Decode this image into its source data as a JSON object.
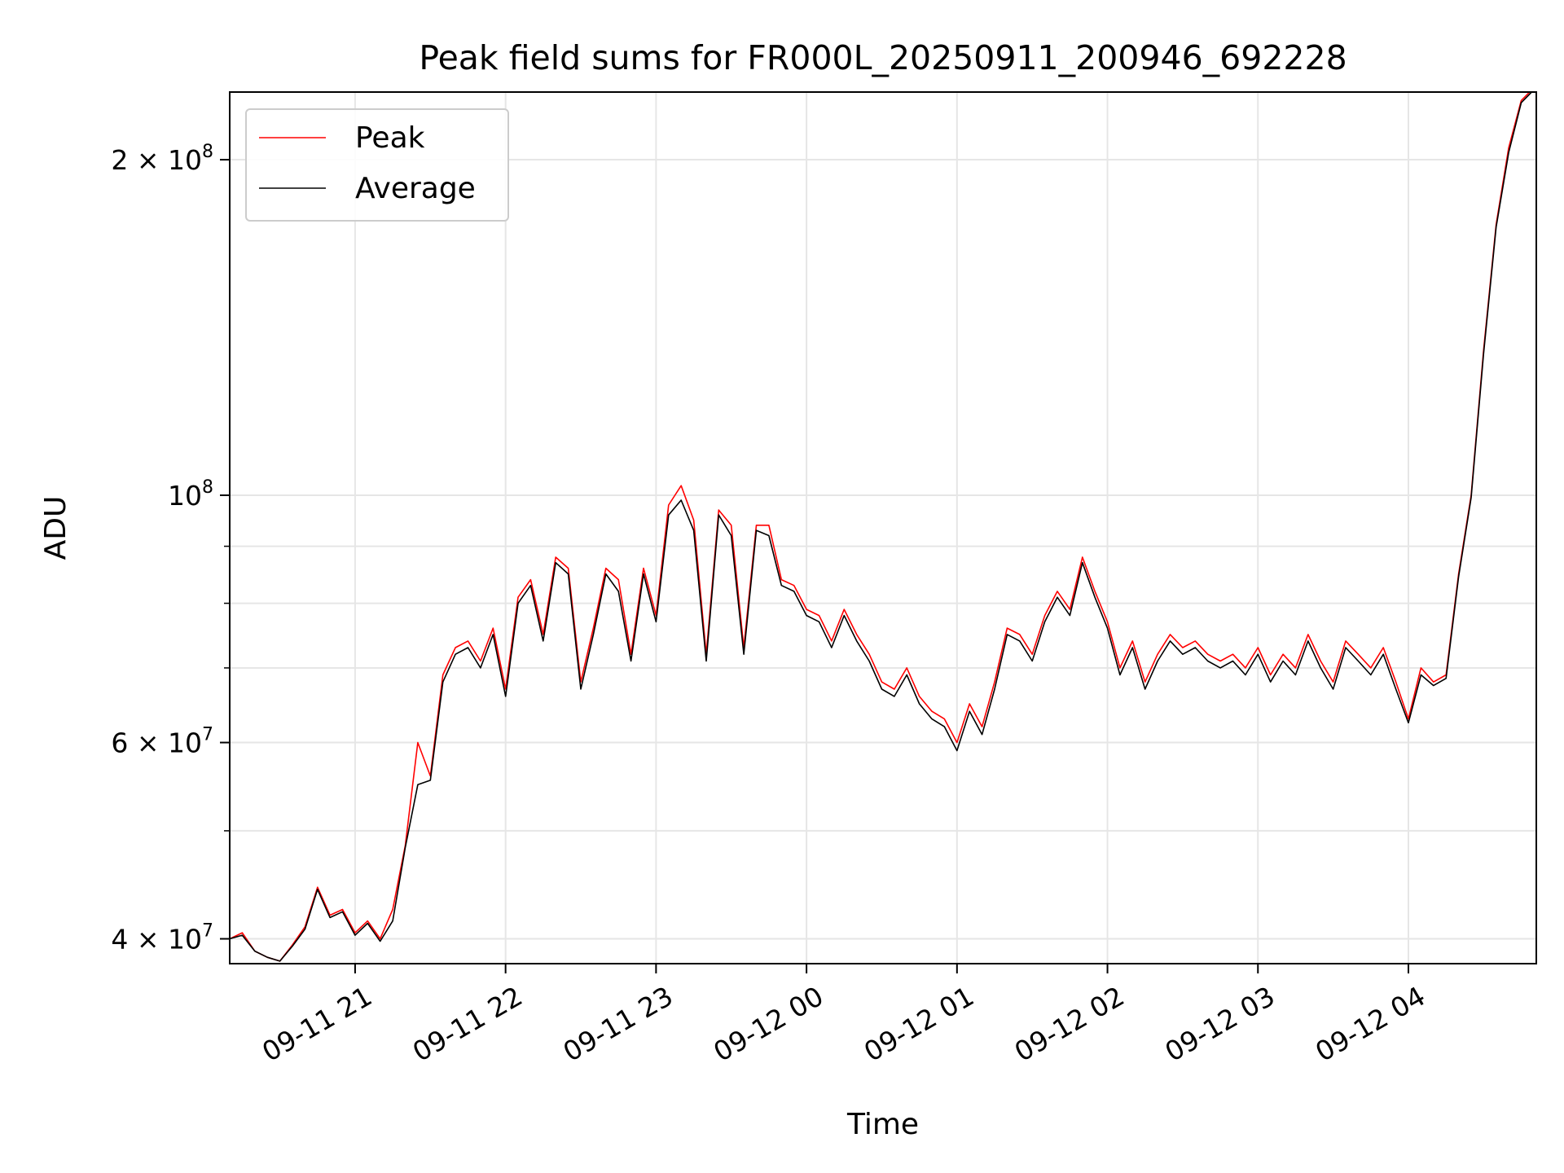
{
  "chart_data": {
    "type": "line",
    "title": "Peak field sums for FR000L_20250911_200946_692228",
    "xlabel": "Time",
    "ylabel": "ADU",
    "yscale": "log",
    "grid": true,
    "legend_position": "top-left",
    "xlim": [
      "2025-09-11 20:10",
      "2025-09-12 04:51"
    ],
    "ylim": [
      38000000,
      230000000
    ],
    "x_ticks": [
      {
        "time": "2025-09-11 21:00",
        "label": "09-11 21"
      },
      {
        "time": "2025-09-11 22:00",
        "label": "09-11 22"
      },
      {
        "time": "2025-09-11 23:00",
        "label": "09-11 23"
      },
      {
        "time": "2025-09-12 00:00",
        "label": "09-12 00"
      },
      {
        "time": "2025-09-12 01:00",
        "label": "09-12 01"
      },
      {
        "time": "2025-09-12 02:00",
        "label": "09-12 02"
      },
      {
        "time": "2025-09-12 03:00",
        "label": "09-12 03"
      },
      {
        "time": "2025-09-12 04:00",
        "label": "09-12 04"
      }
    ],
    "y_major_ticks": [
      {
        "value": 40000000,
        "mantissa": "4",
        "exponent": "7"
      },
      {
        "value": 60000000,
        "mantissa": "6",
        "exponent": "7"
      },
      {
        "value": 100000000,
        "mantissa": "",
        "exponent": "8"
      },
      {
        "value": 200000000,
        "mantissa": "2",
        "exponent": "8"
      }
    ],
    "y_minor_ticks": [
      50000000,
      70000000,
      80000000,
      90000000
    ],
    "series": [
      {
        "name": "Peak",
        "color": "#ff0000",
        "x": [
          "2025-09-11 20:10",
          "2025-09-11 20:15",
          "2025-09-11 20:20",
          "2025-09-11 20:25",
          "2025-09-11 20:30",
          "2025-09-11 20:35",
          "2025-09-11 20:40",
          "2025-09-11 20:45",
          "2025-09-11 20:50",
          "2025-09-11 20:55",
          "2025-09-11 21:00",
          "2025-09-11 21:05",
          "2025-09-11 21:10",
          "2025-09-11 21:15",
          "2025-09-11 21:20",
          "2025-09-11 21:25",
          "2025-09-11 21:30",
          "2025-09-11 21:35",
          "2025-09-11 21:40",
          "2025-09-11 21:45",
          "2025-09-11 21:50",
          "2025-09-11 21:55",
          "2025-09-11 22:00",
          "2025-09-11 22:05",
          "2025-09-11 22:10",
          "2025-09-11 22:15",
          "2025-09-11 22:20",
          "2025-09-11 22:25",
          "2025-09-11 22:30",
          "2025-09-11 22:35",
          "2025-09-11 22:40",
          "2025-09-11 22:45",
          "2025-09-11 22:50",
          "2025-09-11 22:55",
          "2025-09-11 23:00",
          "2025-09-11 23:05",
          "2025-09-11 23:10",
          "2025-09-11 23:15",
          "2025-09-11 23:20",
          "2025-09-11 23:25",
          "2025-09-11 23:30",
          "2025-09-11 23:35",
          "2025-09-11 23:40",
          "2025-09-11 23:45",
          "2025-09-11 23:50",
          "2025-09-11 23:55",
          "2025-09-12 00:00",
          "2025-09-12 00:05",
          "2025-09-12 00:10",
          "2025-09-12 00:15",
          "2025-09-12 00:20",
          "2025-09-12 00:25",
          "2025-09-12 00:30",
          "2025-09-12 00:35",
          "2025-09-12 00:40",
          "2025-09-12 00:45",
          "2025-09-12 00:50",
          "2025-09-12 00:55",
          "2025-09-12 01:00",
          "2025-09-12 01:05",
          "2025-09-12 01:10",
          "2025-09-12 01:15",
          "2025-09-12 01:20",
          "2025-09-12 01:25",
          "2025-09-12 01:30",
          "2025-09-12 01:35",
          "2025-09-12 01:40",
          "2025-09-12 01:45",
          "2025-09-12 01:50",
          "2025-09-12 01:55",
          "2025-09-12 02:00",
          "2025-09-12 02:05",
          "2025-09-12 02:10",
          "2025-09-12 02:15",
          "2025-09-12 02:20",
          "2025-09-12 02:25",
          "2025-09-12 02:30",
          "2025-09-12 02:35",
          "2025-09-12 02:40",
          "2025-09-12 02:45",
          "2025-09-12 02:50",
          "2025-09-12 02:55",
          "2025-09-12 03:00",
          "2025-09-12 03:05",
          "2025-09-12 03:10",
          "2025-09-12 03:15",
          "2025-09-12 03:20",
          "2025-09-12 03:25",
          "2025-09-12 03:30",
          "2025-09-12 03:35",
          "2025-09-12 03:40",
          "2025-09-12 03:45",
          "2025-09-12 03:50",
          "2025-09-12 03:55",
          "2025-09-12 04:00",
          "2025-09-12 04:05",
          "2025-09-12 04:10",
          "2025-09-12 04:15",
          "2025-09-12 04:20",
          "2025-09-12 04:25",
          "2025-09-12 04:30",
          "2025-09-12 04:35",
          "2025-09-12 04:40",
          "2025-09-12 04:45",
          "2025-09-12 04:50"
        ],
        "values": [
          40000000,
          40500000,
          39000000,
          38500000,
          38200000,
          39500000,
          41000000,
          44500000,
          42000000,
          42500000,
          40500000,
          41500000,
          40000000,
          42500000,
          48500000,
          60000000,
          56000000,
          69000000,
          73000000,
          74000000,
          71000000,
          76000000,
          67000000,
          81000000,
          84000000,
          75000000,
          88000000,
          86000000,
          68000000,
          76000000,
          86000000,
          84000000,
          72000000,
          86000000,
          78000000,
          98000000,
          102000000,
          95000000,
          72000000,
          97000000,
          94000000,
          73000000,
          94000000,
          94000000,
          84000000,
          83000000,
          79000000,
          78000000,
          74000000,
          79000000,
          75000000,
          72000000,
          68000000,
          67000000,
          70000000,
          66000000,
          64000000,
          63000000,
          60000000,
          65000000,
          62000000,
          68000000,
          76000000,
          75000000,
          72000000,
          78000000,
          82000000,
          79000000,
          88000000,
          82000000,
          77000000,
          70000000,
          74000000,
          68000000,
          72000000,
          75000000,
          73000000,
          74000000,
          72000000,
          71000000,
          72000000,
          70000000,
          73000000,
          69000000,
          72000000,
          70000000,
          75000000,
          71000000,
          68000000,
          74000000,
          72000000,
          70000000,
          73000000,
          68000000,
          63000000,
          70000000,
          68000000,
          69000000,
          85000000,
          100000000,
          135000000,
          175000000,
          205000000,
          226000000,
          232000000
        ]
      },
      {
        "name": "Average",
        "color": "#000000",
        "x": [
          "2025-09-11 20:10",
          "2025-09-11 20:15",
          "2025-09-11 20:20",
          "2025-09-11 20:25",
          "2025-09-11 20:30",
          "2025-09-11 20:35",
          "2025-09-11 20:40",
          "2025-09-11 20:45",
          "2025-09-11 20:50",
          "2025-09-11 20:55",
          "2025-09-11 21:00",
          "2025-09-11 21:05",
          "2025-09-11 21:10",
          "2025-09-11 21:15",
          "2025-09-11 21:20",
          "2025-09-11 21:25",
          "2025-09-11 21:30",
          "2025-09-11 21:35",
          "2025-09-11 21:40",
          "2025-09-11 21:45",
          "2025-09-11 21:50",
          "2025-09-11 21:55",
          "2025-09-11 22:00",
          "2025-09-11 22:05",
          "2025-09-11 22:10",
          "2025-09-11 22:15",
          "2025-09-11 22:20",
          "2025-09-11 22:25",
          "2025-09-11 22:30",
          "2025-09-11 22:35",
          "2025-09-11 22:40",
          "2025-09-11 22:45",
          "2025-09-11 22:50",
          "2025-09-11 22:55",
          "2025-09-11 23:00",
          "2025-09-11 23:05",
          "2025-09-11 23:10",
          "2025-09-11 23:15",
          "2025-09-11 23:20",
          "2025-09-11 23:25",
          "2025-09-11 23:30",
          "2025-09-11 23:35",
          "2025-09-11 23:40",
          "2025-09-11 23:45",
          "2025-09-11 23:50",
          "2025-09-11 23:55",
          "2025-09-12 00:00",
          "2025-09-12 00:05",
          "2025-09-12 00:10",
          "2025-09-12 00:15",
          "2025-09-12 00:20",
          "2025-09-12 00:25",
          "2025-09-12 00:30",
          "2025-09-12 00:35",
          "2025-09-12 00:40",
          "2025-09-12 00:45",
          "2025-09-12 00:50",
          "2025-09-12 00:55",
          "2025-09-12 01:00",
          "2025-09-12 01:05",
          "2025-09-12 01:10",
          "2025-09-12 01:15",
          "2025-09-12 01:20",
          "2025-09-12 01:25",
          "2025-09-12 01:30",
          "2025-09-12 01:35",
          "2025-09-12 01:40",
          "2025-09-12 01:45",
          "2025-09-12 01:50",
          "2025-09-12 01:55",
          "2025-09-12 02:00",
          "2025-09-12 02:05",
          "2025-09-12 02:10",
          "2025-09-12 02:15",
          "2025-09-12 02:20",
          "2025-09-12 02:25",
          "2025-09-12 02:30",
          "2025-09-12 02:35",
          "2025-09-12 02:40",
          "2025-09-12 02:45",
          "2025-09-12 02:50",
          "2025-09-12 02:55",
          "2025-09-12 03:00",
          "2025-09-12 03:05",
          "2025-09-12 03:10",
          "2025-09-12 03:15",
          "2025-09-12 03:20",
          "2025-09-12 03:25",
          "2025-09-12 03:30",
          "2025-09-12 03:35",
          "2025-09-12 03:40",
          "2025-09-12 03:45",
          "2025-09-12 03:50",
          "2025-09-12 03:55",
          "2025-09-12 04:00",
          "2025-09-12 04:05",
          "2025-09-12 04:10",
          "2025-09-12 04:15",
          "2025-09-12 04:20",
          "2025-09-12 04:25",
          "2025-09-12 04:30",
          "2025-09-12 04:35",
          "2025-09-12 04:40",
          "2025-09-12 04:45",
          "2025-09-12 04:50"
        ],
        "values": [
          40000000,
          40300000,
          39000000,
          38500000,
          38200000,
          39400000,
          40800000,
          44300000,
          41800000,
          42300000,
          40300000,
          41300000,
          39800000,
          41500000,
          48300000,
          55000000,
          55500000,
          68000000,
          72000000,
          73000000,
          70000000,
          75000000,
          66000000,
          80000000,
          83000000,
          74000000,
          87000000,
          85000000,
          67000000,
          75000000,
          85000000,
          82000000,
          71000000,
          85000000,
          77000000,
          96000000,
          99000000,
          93000000,
          71000000,
          96000000,
          92000000,
          72000000,
          93000000,
          92000000,
          83000000,
          82000000,
          78000000,
          77000000,
          73000000,
          78000000,
          74000000,
          71000000,
          67000000,
          66000000,
          69000000,
          65000000,
          63000000,
          62000000,
          59000000,
          64000000,
          61000000,
          67000000,
          75000000,
          74000000,
          71000000,
          77000000,
          81000000,
          78000000,
          87000000,
          81000000,
          76000000,
          69000000,
          73000000,
          67000000,
          71000000,
          74000000,
          72000000,
          73000000,
          71000000,
          70000000,
          71000000,
          69000000,
          72000000,
          68000000,
          71000000,
          69000000,
          74000000,
          70000000,
          67000000,
          73000000,
          71000000,
          69000000,
          72000000,
          67000000,
          62500000,
          69000000,
          67500000,
          68500000,
          84500000,
          99500000,
          134000000,
          174000000,
          203000000,
          225000000,
          231000000
        ]
      }
    ]
  }
}
